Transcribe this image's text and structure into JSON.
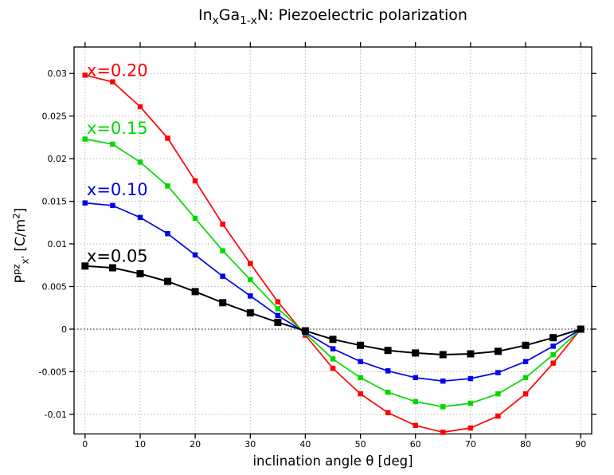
{
  "chart_data": {
    "type": "line",
    "title": "InxGa1-xN: Piezoelectric polarization",
    "title_parts": [
      {
        "t": "In"
      },
      {
        "t": "x",
        "sub": true
      },
      {
        "t": "Ga"
      },
      {
        "t": "1-x",
        "sub": true
      },
      {
        "t": "N: Piezoelectric polarization"
      }
    ],
    "xlabel": "inclination angle θ [deg]",
    "ylabel": "Ppzx' [C/m2]",
    "ylabel_parts": [
      {
        "t": "P"
      },
      {
        "t": "pz",
        "sup": true
      },
      {
        "t": "x'",
        "sub": true
      },
      {
        "t": " [C/m"
      },
      {
        "t": "2",
        "sup": true
      },
      {
        "t": "]"
      }
    ],
    "marker": "square",
    "grid": true,
    "legend_position": "inline-curve-labels",
    "xlim": [
      -2,
      92
    ],
    "ylim": [
      -0.0123,
      0.0331
    ],
    "x": [
      0,
      5,
      10,
      15,
      20,
      25,
      30,
      35,
      40,
      45,
      50,
      55,
      60,
      65,
      70,
      75,
      80,
      85,
      90
    ],
    "xticks": {
      "values": [
        0,
        10,
        20,
        30,
        40,
        50,
        60,
        70,
        80,
        90
      ],
      "labels": [
        "0",
        "10",
        "20",
        "30",
        "40",
        "50",
        "60",
        "70",
        "80",
        "90"
      ]
    },
    "yticks": {
      "values": [
        0.03,
        0.025,
        0.02,
        0.015,
        0.01,
        0.005,
        0,
        -0.005,
        -0.01
      ],
      "labels": [
        "0.03",
        "0.025",
        "0.02",
        "0.015",
        "0.01",
        "0.005",
        "0",
        "-0.005",
        "-0.01"
      ]
    },
    "zero_line_color": "#000000",
    "gridline_color": "#b8b8b8",
    "series": [
      {
        "name": "x=0.20",
        "color": "#ff0000",
        "label_anchor": {
          "x": 0.3,
          "y": 0.0297
        },
        "values": [
          0.0298,
          0.029,
          0.0261,
          0.0224,
          0.0174,
          0.0123,
          0.0077,
          0.0032,
          -0.0007,
          -0.0046,
          -0.0076,
          -0.0098,
          -0.0113,
          -0.0121,
          -0.0116,
          -0.0102,
          -0.0076,
          -0.004,
          0.0
        ]
      },
      {
        "name": "x=0.15",
        "color": "#00d900",
        "label_anchor": {
          "x": 0.3,
          "y": 0.0229
        },
        "values": [
          0.0223,
          0.0217,
          0.0196,
          0.0168,
          0.013,
          0.0092,
          0.0058,
          0.0024,
          -0.0005,
          -0.0035,
          -0.0057,
          -0.0074,
          -0.0085,
          -0.0091,
          -0.0087,
          -0.0076,
          -0.0057,
          -0.003,
          0.0
        ]
      },
      {
        "name": "x=0.10",
        "color": "#0000ee",
        "label_anchor": {
          "x": 0.3,
          "y": 0.0157
        },
        "values": [
          0.0148,
          0.0145,
          0.0131,
          0.0112,
          0.0087,
          0.0062,
          0.0039,
          0.0016,
          -0.0004,
          -0.0023,
          -0.0038,
          -0.0049,
          -0.0057,
          -0.0061,
          -0.0058,
          -0.0051,
          -0.0038,
          -0.002,
          0.0
        ]
      },
      {
        "name": "x=0.05",
        "color": "#000000",
        "label_anchor": {
          "x": 0.3,
          "y": 0.0079
        },
        "values": [
          0.0074,
          0.0072,
          0.0065,
          0.0056,
          0.0044,
          0.0031,
          0.0019,
          0.0008,
          -0.0002,
          -0.0012,
          -0.0019,
          -0.0025,
          -0.0028,
          -0.003,
          -0.0029,
          -0.0026,
          -0.0019,
          -0.001,
          0.0
        ]
      }
    ]
  }
}
